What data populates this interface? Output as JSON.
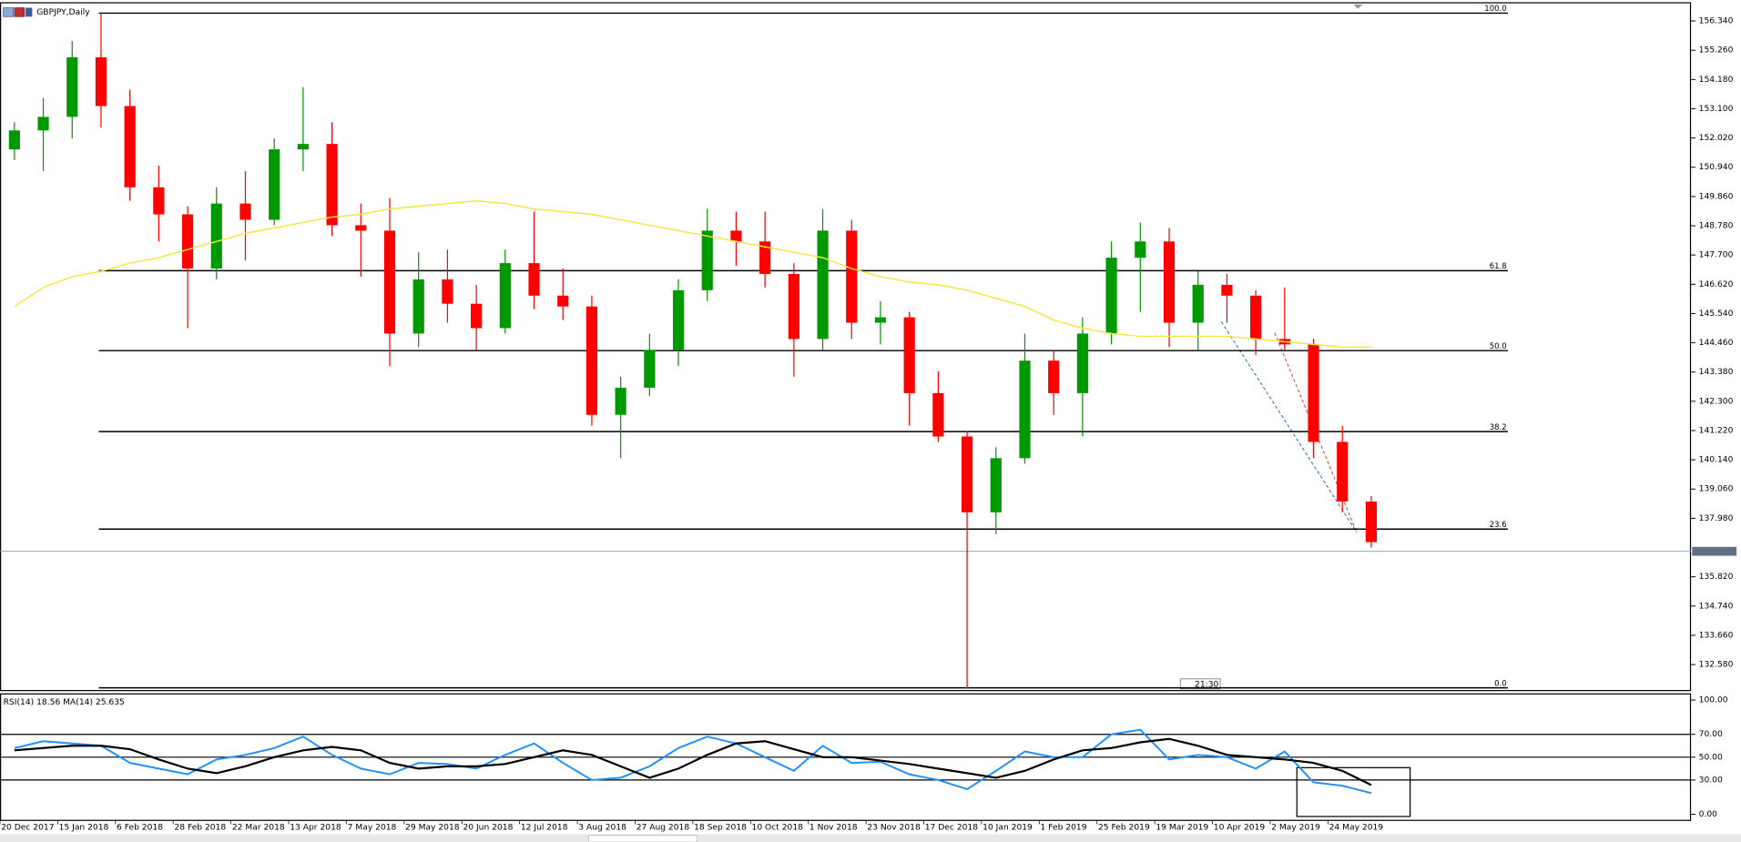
{
  "chart_data": [
    {
      "type": "candlestick",
      "title": "GBPJPY,Daily",
      "categories": [
        "20 Dec 2017",
        null,
        "15 Jan 2018",
        null,
        "6 Feb 2018",
        null,
        "28 Feb 2018",
        null,
        "22 Mar 2018",
        null,
        "13 Apr 2018",
        null,
        "7 May 2018",
        null,
        "29 May 2018",
        null,
        "20 Jun 2018",
        null,
        "12 Jul 2018",
        null,
        "3 Aug 2018",
        null,
        "27 Aug 2018",
        null,
        "18 Sep 2018",
        null,
        "10 Oct 2018",
        null,
        "1 Nov 2018",
        null,
        "23 Nov 2018",
        null,
        "17 Dec 2018",
        null,
        "10 Jan 2019",
        null,
        "1 Feb 2019",
        null,
        "25 Feb 2019",
        null,
        "19 Mar 2019",
        null,
        "10 Apr 2019",
        null,
        "2 May 2019",
        null,
        "24 May 2019",
        null
      ],
      "open": [
        151.6,
        152.3,
        152.8,
        155.0,
        153.2,
        150.2,
        149.2,
        147.2,
        149.6,
        149.0,
        151.6,
        151.8,
        148.8,
        148.6,
        144.8,
        146.8,
        145.9,
        145.0,
        147.4,
        146.2,
        145.8,
        141.8,
        142.8,
        144.2,
        146.4,
        148.6,
        148.2,
        147.0,
        144.6,
        148.6,
        145.2,
        145.4,
        142.6,
        141.0,
        138.2,
        140.2,
        143.8,
        142.6,
        144.8,
        147.6,
        148.2,
        145.2,
        146.6,
        146.2,
        144.6,
        144.4,
        140.8,
        138.6
      ],
      "high": [
        152.6,
        153.5,
        155.6,
        156.6,
        153.8,
        151.0,
        149.5,
        150.2,
        150.8,
        152.0,
        153.9,
        152.6,
        149.6,
        149.8,
        147.8,
        147.9,
        146.6,
        147.9,
        149.3,
        147.2,
        146.2,
        143.2,
        144.8,
        146.8,
        149.4,
        149.3,
        149.3,
        147.4,
        149.4,
        149.0,
        146.0,
        145.6,
        143.4,
        141.2,
        140.6,
        144.8,
        144.2,
        145.4,
        148.2,
        148.9,
        148.7,
        147.1,
        147.0,
        146.4,
        146.5,
        144.6,
        141.4,
        138.8
      ],
      "low": [
        151.2,
        150.8,
        152.0,
        152.4,
        149.7,
        148.2,
        145.0,
        146.8,
        147.5,
        148.8,
        150.8,
        148.4,
        146.9,
        143.6,
        144.3,
        145.2,
        144.2,
        144.8,
        145.7,
        145.3,
        141.4,
        140.2,
        142.5,
        143.6,
        146.0,
        147.3,
        146.5,
        143.2,
        144.2,
        144.6,
        144.4,
        141.4,
        140.8,
        131.7,
        137.4,
        140.0,
        141.8,
        141.0,
        144.4,
        145.6,
        144.3,
        144.2,
        145.2,
        144.0,
        144.2,
        140.2,
        138.2,
        136.9
      ],
      "close": [
        152.3,
        152.8,
        155.0,
        153.2,
        150.2,
        149.2,
        147.2,
        149.6,
        149.0,
        151.6,
        151.8,
        148.8,
        148.6,
        144.8,
        146.8,
        145.9,
        145.0,
        147.4,
        146.2,
        145.8,
        141.8,
        142.8,
        144.2,
        146.4,
        148.6,
        148.2,
        147.0,
        144.6,
        148.6,
        145.2,
        145.4,
        142.6,
        141.0,
        138.2,
        140.2,
        143.8,
        142.6,
        144.8,
        147.6,
        148.2,
        145.2,
        146.6,
        146.2,
        144.6,
        144.4,
        140.8,
        138.6,
        137.1
      ],
      "up_color": "#009900",
      "down_color": "#ff0000",
      "ma_values": [
        145.8,
        146.5,
        146.9,
        147.1,
        147.4,
        147.6,
        147.9,
        148.2,
        148.5,
        148.7,
        148.9,
        149.1,
        149.2,
        149.4,
        149.5,
        149.6,
        149.7,
        149.6,
        149.4,
        149.3,
        149.2,
        149.0,
        148.8,
        148.6,
        148.4,
        148.2,
        148.0,
        147.8,
        147.6,
        147.2,
        146.9,
        146.7,
        146.6,
        146.4,
        146.1,
        145.8,
        145.3,
        145.0,
        144.8,
        144.7,
        144.7,
        144.7,
        144.7,
        144.6,
        144.5,
        144.4,
        144.3,
        144.3
      ],
      "ma_color": "#f5e642",
      "fib_levels": [
        {
          "value": 156.63,
          "label": "100.0"
        },
        {
          "value": 147.12,
          "label": "61.8"
        },
        {
          "value": 144.17,
          "label": "50.0"
        },
        {
          "value": 141.18,
          "label": "38.2"
        },
        {
          "value": 137.58,
          "label": "23.6"
        },
        {
          "value": 131.72,
          "label": "0.0"
        }
      ],
      "current_price": 136.76,
      "time_label": "21:30",
      "ylim": [
        131.64,
        156.91
      ],
      "yticks": [
        {
          "value": 156.34,
          "label": "156.340"
        },
        {
          "value": 155.26,
          "label": "155.260"
        },
        {
          "value": 154.18,
          "label": "154.180"
        },
        {
          "value": 153.1,
          "label": "153.100"
        },
        {
          "value": 152.02,
          "label": "152.020"
        },
        {
          "value": 150.94,
          "label": "150.940"
        },
        {
          "value": 149.86,
          "label": "149.860"
        },
        {
          "value": 148.78,
          "label": "148.780"
        },
        {
          "value": 147.7,
          "label": "147.700"
        },
        {
          "value": 146.62,
          "label": "146.620"
        },
        {
          "value": 145.54,
          "label": "145.540"
        },
        {
          "value": 144.46,
          "label": "144.460"
        },
        {
          "value": 143.38,
          "label": "143.380"
        },
        {
          "value": 142.3,
          "label": "142.300"
        },
        {
          "value": 141.22,
          "label": "141.220"
        },
        {
          "value": 140.14,
          "label": "140.140"
        },
        {
          "value": 139.06,
          "label": "139.060"
        },
        {
          "value": 137.98,
          "label": "137.980"
        },
        {
          "value": 135.82,
          "label": "135.820"
        },
        {
          "value": 134.74,
          "label": "134.740"
        },
        {
          "value": 133.66,
          "label": "133.660"
        },
        {
          "value": 132.58,
          "label": "132.580"
        }
      ]
    },
    {
      "type": "line",
      "title": "RSI(14) 18.56 MA(14) 25.635",
      "series": [
        {
          "color": "#1e90ff",
          "values": [
            58,
            64,
            62,
            60,
            45,
            40,
            35,
            48,
            52,
            58,
            68,
            52,
            40,
            35,
            45,
            44,
            40,
            52,
            62,
            45,
            30,
            32,
            42,
            58,
            68,
            62,
            50,
            38,
            60,
            45,
            46,
            35,
            30,
            22,
            38,
            55,
            50,
            50,
            70,
            74,
            48,
            52,
            50,
            40,
            55,
            28,
            25,
            18.56
          ]
        },
        {
          "color": "#000000",
          "values": [
            56,
            58,
            60,
            60,
            57,
            48,
            40,
            36,
            42,
            50,
            56,
            59,
            56,
            45,
            40,
            42,
            42,
            44,
            50,
            56,
            52,
            42,
            32,
            40,
            52,
            62,
            64,
            57,
            50,
            50,
            47,
            44,
            40,
            36,
            32,
            38,
            48,
            56,
            58,
            63,
            66,
            60,
            52,
            50,
            48,
            45,
            38,
            25.635
          ]
        }
      ],
      "levels": [
        70,
        50,
        30
      ],
      "ylim": [
        -5.8,
        104.9
      ],
      "yticks": [
        {
          "value": 100,
          "label": "100.00"
        },
        {
          "value": 70,
          "label": "70.00"
        },
        {
          "value": 50,
          "label": "50.00"
        },
        {
          "value": 30,
          "label": "30.00"
        },
        {
          "value": 0,
          "label": "0.00"
        }
      ]
    }
  ]
}
